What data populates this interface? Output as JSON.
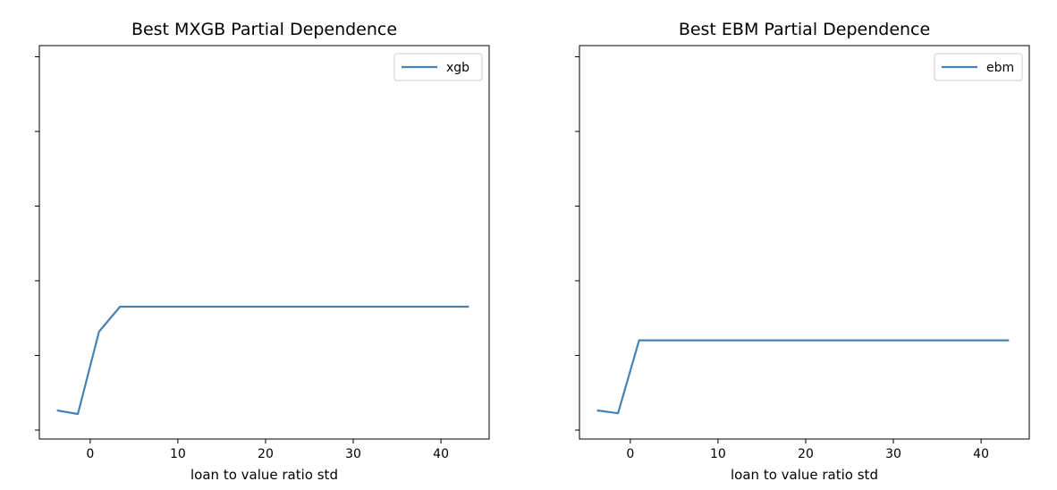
{
  "chart_data": [
    {
      "type": "line",
      "title": "Best MXGB Partial Dependence",
      "xlabel": "loan to value ratio std",
      "ylabel": "",
      "xlim": [
        -5.8,
        45.5
      ],
      "ylim": [
        -0.02,
        0.53
      ],
      "xticks": [
        0,
        10,
        20,
        30,
        40
      ],
      "ytick_count": 6,
      "legend_position": "top-right",
      "series": [
        {
          "name": "xgb",
          "color": "#4682b4",
          "x": [
            -3.8,
            -1.4,
            1.0,
            3.4,
            43.2
          ],
          "y": [
            0.02,
            0.015,
            0.13,
            0.165,
            0.165
          ]
        }
      ]
    },
    {
      "type": "line",
      "title": "Best EBM Partial Dependence",
      "xlabel": "loan to value ratio std",
      "ylabel": "",
      "xlim": [
        -5.8,
        45.5
      ],
      "ylim": [
        -0.02,
        0.53
      ],
      "xticks": [
        0,
        10,
        20,
        30,
        40
      ],
      "ytick_count": 6,
      "legend_position": "top-right",
      "series": [
        {
          "name": "ebm",
          "color": "#4682b4",
          "x": [
            -3.8,
            -1.4,
            1.0,
            43.2
          ],
          "y": [
            0.02,
            0.016,
            0.118,
            0.118
          ]
        }
      ]
    }
  ]
}
